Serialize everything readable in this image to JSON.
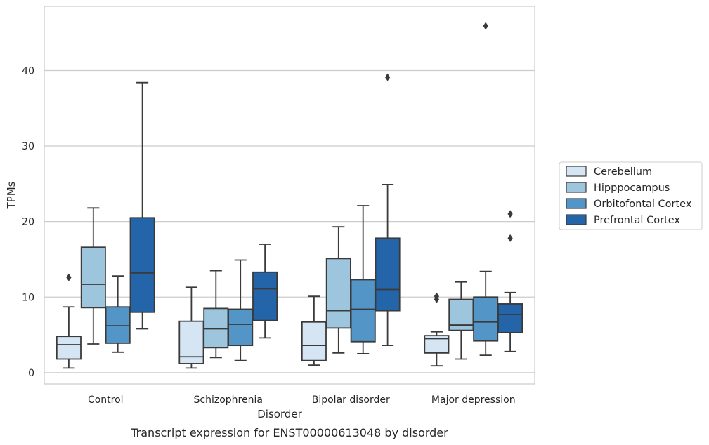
{
  "caption": "Transcript expression for ENST00000613048 by disorder",
  "chart_data": {
    "type": "box",
    "xlabel": "Disorder",
    "ylabel": "TPMs",
    "ylim": [
      -1.5,
      48.5
    ],
    "yticks": [
      0,
      10,
      20,
      30,
      40
    ],
    "grid": "horizontal",
    "legend_position": "right",
    "categories": [
      "Control",
      "Schizophrenia",
      "Bipolar disorder",
      "Major depression"
    ],
    "series": [
      {
        "name": "Cerebellum",
        "color": "#d6e5f4",
        "boxes": [
          {
            "whislo": 0.6,
            "q1": 1.8,
            "med": 3.7,
            "q3": 4.8,
            "whishi": 8.7,
            "fliers": [
              12.6
            ]
          },
          {
            "whislo": 0.6,
            "q1": 1.2,
            "med": 2.1,
            "q3": 6.8,
            "whishi": 11.3,
            "fliers": []
          },
          {
            "whislo": 1.0,
            "q1": 1.6,
            "med": 3.6,
            "q3": 6.7,
            "whishi": 10.1,
            "fliers": []
          },
          {
            "whislo": 0.9,
            "q1": 2.6,
            "med": 4.5,
            "q3": 4.9,
            "whishi": 5.4,
            "fliers": [
              9.7,
              10.1
            ]
          }
        ]
      },
      {
        "name": "Hipppocampus",
        "color": "#9dc5de",
        "boxes": [
          {
            "whislo": 3.8,
            "q1": 8.6,
            "med": 11.7,
            "q3": 16.6,
            "whishi": 21.8,
            "fliers": []
          },
          {
            "whislo": 2.0,
            "q1": 3.3,
            "med": 5.8,
            "q3": 8.5,
            "whishi": 13.5,
            "fliers": []
          },
          {
            "whislo": 2.6,
            "q1": 5.9,
            "med": 8.2,
            "q3": 15.1,
            "whishi": 19.3,
            "fliers": []
          },
          {
            "whislo": 1.8,
            "q1": 5.6,
            "med": 6.3,
            "q3": 9.7,
            "whishi": 12.0,
            "fliers": []
          }
        ]
      },
      {
        "name": "Orbitofontal Cortex",
        "color": "#5295c6",
        "boxes": [
          {
            "whislo": 2.7,
            "q1": 3.9,
            "med": 6.2,
            "q3": 8.7,
            "whishi": 12.8,
            "fliers": []
          },
          {
            "whislo": 1.6,
            "q1": 3.6,
            "med": 6.4,
            "q3": 8.4,
            "whishi": 14.9,
            "fliers": []
          },
          {
            "whislo": 2.5,
            "q1": 4.1,
            "med": 8.4,
            "q3": 12.3,
            "whishi": 22.1,
            "fliers": []
          },
          {
            "whislo": 2.3,
            "q1": 4.2,
            "med": 6.7,
            "q3": 10.0,
            "whishi": 13.4,
            "fliers": [
              45.9
            ]
          }
        ]
      },
      {
        "name": "Prefrontal Cortex",
        "color": "#2464a8",
        "boxes": [
          {
            "whislo": 5.8,
            "q1": 8.0,
            "med": 13.2,
            "q3": 20.5,
            "whishi": 38.4,
            "fliers": []
          },
          {
            "whislo": 4.6,
            "q1": 6.9,
            "med": 11.1,
            "q3": 13.3,
            "whishi": 17.0,
            "fliers": []
          },
          {
            "whislo": 3.6,
            "q1": 8.2,
            "med": 11.0,
            "q3": 17.8,
            "whishi": 24.9,
            "fliers": [
              39.1
            ]
          },
          {
            "whislo": 2.8,
            "q1": 5.3,
            "med": 7.7,
            "q3": 9.1,
            "whishi": 10.6,
            "fliers": [
              17.8,
              21.0
            ]
          }
        ]
      }
    ]
  }
}
